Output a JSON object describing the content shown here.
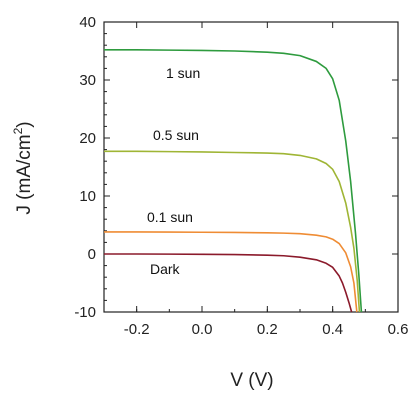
{
  "chart_data": {
    "type": "line",
    "xlabel": "V (V)",
    "ylabel_main": "J (mA/cm",
    "ylabel_sup": "2",
    "ylabel_end": ")",
    "xlim": [
      -0.3,
      0.6
    ],
    "ylim": [
      -10,
      40
    ],
    "xticks": [
      -0.2,
      0.0,
      0.2,
      0.4,
      0.6
    ],
    "xtick_labels": [
      "-0.2",
      "0.0",
      "0.2",
      "0.4",
      "0.6"
    ],
    "yticks": [
      -10,
      0,
      10,
      20,
      30,
      40
    ],
    "ytick_labels": [
      "-10",
      "0",
      "10",
      "20",
      "30",
      "40"
    ],
    "grid": false,
    "series": [
      {
        "name": "1 sun",
        "color": "#2e9b3e",
        "x": [
          -0.3,
          -0.2,
          -0.1,
          0.0,
          0.1,
          0.2,
          0.25,
          0.3,
          0.35,
          0.38,
          0.4,
          0.42,
          0.44,
          0.455,
          0.47,
          0.48,
          0.488
        ],
        "y": [
          35.2,
          35.2,
          35.15,
          35.1,
          35.0,
          34.8,
          34.6,
          34.2,
          33.2,
          32.0,
          30.2,
          26.5,
          19.5,
          12.5,
          3.5,
          -3.5,
          -10
        ]
      },
      {
        "name": "0.5 sun",
        "color": "#9fb535",
        "x": [
          -0.3,
          -0.2,
          -0.1,
          0.0,
          0.1,
          0.2,
          0.25,
          0.3,
          0.35,
          0.38,
          0.4,
          0.42,
          0.44,
          0.455,
          0.465,
          0.475,
          0.482
        ],
        "y": [
          17.7,
          17.7,
          17.65,
          17.6,
          17.5,
          17.4,
          17.3,
          17.0,
          16.4,
          15.6,
          14.6,
          12.5,
          8.8,
          4.6,
          1.0,
          -4.5,
          -10
        ]
      },
      {
        "name": "0.1 sun",
        "color": "#ef8c34",
        "x": [
          -0.3,
          -0.2,
          -0.1,
          0.0,
          0.1,
          0.2,
          0.25,
          0.3,
          0.35,
          0.38,
          0.4,
          0.42,
          0.44,
          0.455,
          0.465,
          0.474
        ],
        "y": [
          3.8,
          3.8,
          3.78,
          3.75,
          3.72,
          3.65,
          3.6,
          3.5,
          3.25,
          2.95,
          2.55,
          1.8,
          0.2,
          -2.2,
          -5.0,
          -10
        ]
      },
      {
        "name": "Dark",
        "color": "#8b1a2b",
        "x": [
          -0.3,
          -0.2,
          -0.1,
          0.0,
          0.1,
          0.2,
          0.25,
          0.3,
          0.35,
          0.38,
          0.4,
          0.42,
          0.43,
          0.44,
          0.45,
          0.458
        ],
        "y": [
          0.0,
          0.0,
          -0.02,
          -0.05,
          -0.1,
          -0.2,
          -0.3,
          -0.55,
          -1.0,
          -1.6,
          -2.3,
          -3.8,
          -5.0,
          -6.6,
          -8.4,
          -10
        ]
      }
    ],
    "annotations": [
      "1 sun",
      "0.5 sun",
      "0.1 sun",
      "Dark"
    ]
  }
}
